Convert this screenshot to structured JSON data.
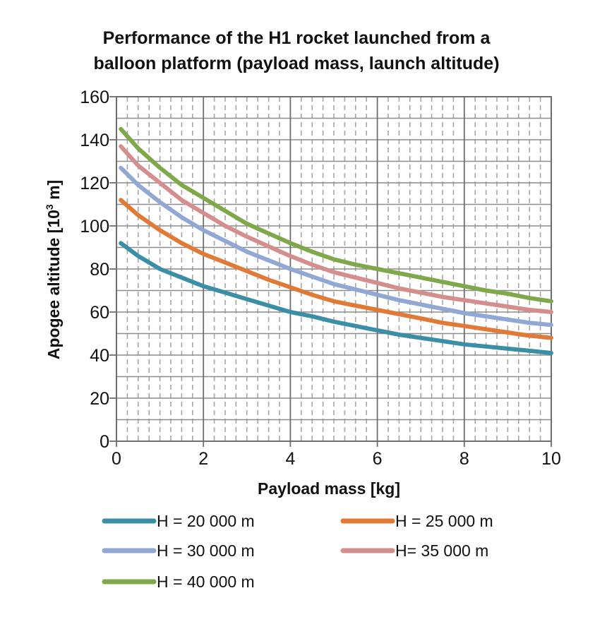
{
  "chart_data": {
    "type": "line",
    "title_lines": [
      "Performance of the H1 rocket launched from a",
      "balloon platform (payload mass, launch altitude)"
    ],
    "xlabel": "Payload mass [kg]",
    "ylabel_main": "Apogee altitude [10",
    "ylabel_sup": "3",
    "ylabel_end": " m]",
    "xlim": [
      0,
      10
    ],
    "ylim": [
      0,
      160
    ],
    "x_ticks": [
      0,
      2,
      4,
      6,
      8,
      10
    ],
    "y_ticks": [
      0,
      20,
      40,
      60,
      80,
      100,
      120,
      140,
      160
    ],
    "x_minor_step": 0.25,
    "y_gridline_step": 10,
    "grid": true,
    "legend_position": "bottom",
    "series": [
      {
        "name": "H = 20 000 m",
        "color": "#3a8fa6",
        "x": [
          0.1,
          0.5,
          1,
          1.5,
          2,
          2.5,
          3,
          3.5,
          4,
          4.5,
          5,
          5.5,
          6,
          6.5,
          7,
          7.5,
          8,
          8.5,
          9,
          9.5,
          10
        ],
        "y": [
          92,
          86,
          80,
          76,
          72,
          69,
          66,
          63,
          60,
          58,
          55.5,
          53.5,
          51.5,
          49.5,
          48,
          46.5,
          45,
          44,
          43,
          42,
          41
        ]
      },
      {
        "name": "H = 25 000 m",
        "color": "#e07a36",
        "x": [
          0.1,
          0.5,
          1,
          1.5,
          2,
          2.5,
          3,
          3.5,
          4,
          4.5,
          5,
          5.5,
          6,
          6.5,
          7,
          7.5,
          8,
          8.5,
          9,
          9.5,
          10
        ],
        "y": [
          112,
          105,
          98,
          92,
          87,
          83,
          79,
          75,
          71.5,
          68,
          65,
          63,
          61,
          59,
          57,
          55,
          53.5,
          52,
          50.5,
          49,
          48
        ]
      },
      {
        "name": "H = 30 000 m",
        "color": "#91a7d4",
        "x": [
          0.1,
          0.5,
          1,
          1.5,
          2,
          2.5,
          3,
          3.5,
          4,
          4.5,
          5,
          5.5,
          6,
          6.5,
          7,
          7.5,
          8,
          8.5,
          9,
          9.5,
          10
        ],
        "y": [
          127,
          119,
          111,
          104,
          98,
          93,
          88,
          84,
          80,
          76.5,
          73,
          70.5,
          68,
          65.5,
          63.5,
          61.5,
          59.5,
          58,
          56.5,
          55,
          54
        ]
      },
      {
        "name": "H= 35 000 m",
        "color": "#d38e8d",
        "x": [
          0.1,
          0.5,
          1,
          1.5,
          2,
          2.5,
          3,
          3.5,
          4,
          4.5,
          5,
          5.5,
          6,
          6.5,
          7,
          7.5,
          8,
          8.5,
          9,
          9.5,
          10
        ],
        "y": [
          137,
          128,
          120,
          112,
          106,
          100,
          95,
          90.5,
          86,
          82,
          78.5,
          76,
          73.5,
          71,
          69,
          67,
          65.5,
          64,
          62.5,
          61,
          60
        ]
      },
      {
        "name": "H = 40 000 m",
        "color": "#7fa84b",
        "x": [
          0.1,
          0.5,
          1,
          1.5,
          2,
          2.5,
          3,
          3.5,
          4,
          4.5,
          5,
          5.5,
          6,
          6.5,
          7,
          7.5,
          8,
          8.5,
          9,
          9.5,
          10
        ],
        "y": [
          145,
          136,
          127,
          119,
          113,
          107,
          101,
          96.5,
          92,
          88,
          84.5,
          82,
          80,
          78,
          76,
          74,
          72,
          70,
          68.5,
          66.5,
          65
        ]
      }
    ]
  }
}
